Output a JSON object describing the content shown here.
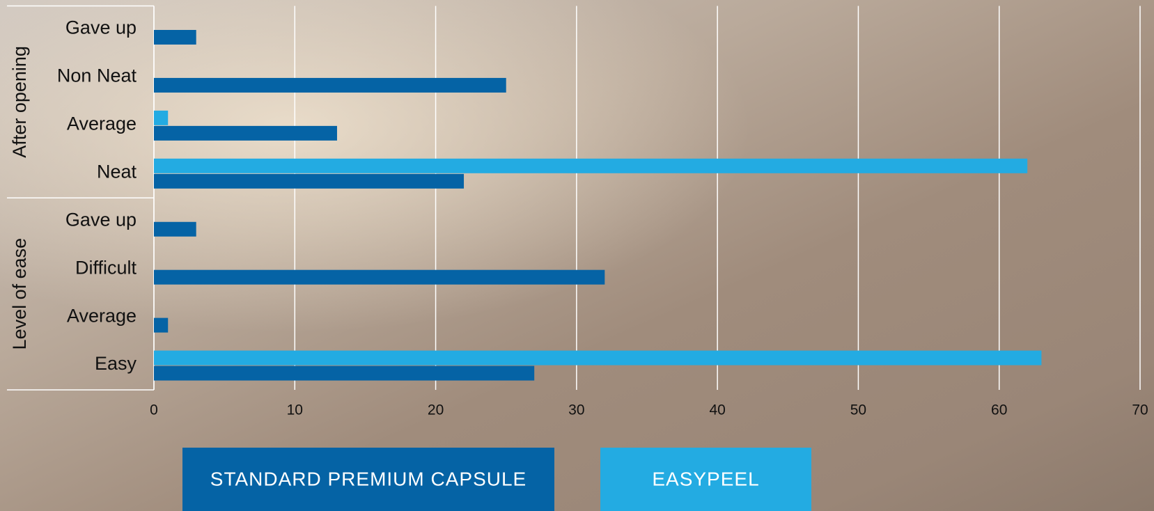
{
  "chart_data": {
    "type": "grouped-hbar",
    "groups": [
      {
        "name": "After opening",
        "categories": [
          "Gave up",
          "Non Neat",
          "Average",
          "Neat"
        ]
      },
      {
        "name": "Level of ease",
        "categories": [
          "Gave up",
          "Difficult",
          "Average",
          "Easy"
        ]
      }
    ],
    "series": [
      {
        "name": "EASYPEEL",
        "color": "#23abe2",
        "values": [
          [
            0,
            0,
            1,
            62
          ],
          [
            0,
            0,
            0,
            63
          ]
        ]
      },
      {
        "name": "STANDARD PREMIUM CAPSULE",
        "color": "#0563a5",
        "values": [
          [
            3,
            25,
            13,
            22
          ],
          [
            3,
            32,
            1,
            27
          ]
        ]
      }
    ],
    "xlim": [
      0,
      70
    ],
    "xticks": [
      0,
      10,
      20,
      30,
      40,
      50,
      60,
      70
    ],
    "grid": true
  }
}
